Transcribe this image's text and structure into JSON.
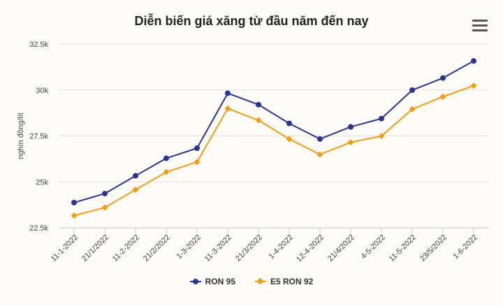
{
  "title": "Diễn biến giá xăng từ đầu năm đến nay",
  "menu": {
    "icon": "hamburger-menu-icon"
  },
  "colors": {
    "ron95": "#283593",
    "e5": "#f39c12",
    "grid": "#e2e2e2",
    "axis": "#c8c8c8"
  },
  "chart_data": {
    "type": "line",
    "title": "Diễn biến giá xăng từ đầu năm đến nay",
    "xlabel": "",
    "ylabel": "nghìn đồng/lít",
    "ylim": [
      22500,
      32500
    ],
    "yticks": [
      22500,
      25000,
      27500,
      30000,
      32500
    ],
    "ytick_labels": [
      "22.5k",
      "25k",
      "27.5k",
      "30k",
      "32.5k"
    ],
    "grid": true,
    "legend_position": "bottom",
    "categories": [
      "11-1-2022",
      "21/1/2022",
      "11-2-2022",
      "21/2/2022",
      "1-3-2022",
      "11-3-2022",
      "21/3/2022",
      "1-4-2022",
      "12-4-2022",
      "21/4/2022",
      "4-5-2022",
      "11-5-2022",
      "23/5/2022",
      "1-6-2022"
    ],
    "series": [
      {
        "name": "RON 95",
        "marker": "circle",
        "values": [
          23870,
          24360,
          25330,
          26280,
          26830,
          29820,
          29200,
          28180,
          27330,
          27990,
          28440,
          29990,
          30650,
          31580
        ]
      },
      {
        "name": "E5 RON 92",
        "marker": "diamond",
        "values": [
          23160,
          23600,
          24570,
          25530,
          26080,
          28990,
          28350,
          27330,
          26490,
          27150,
          27490,
          28950,
          29630,
          30230
        ]
      }
    ]
  }
}
